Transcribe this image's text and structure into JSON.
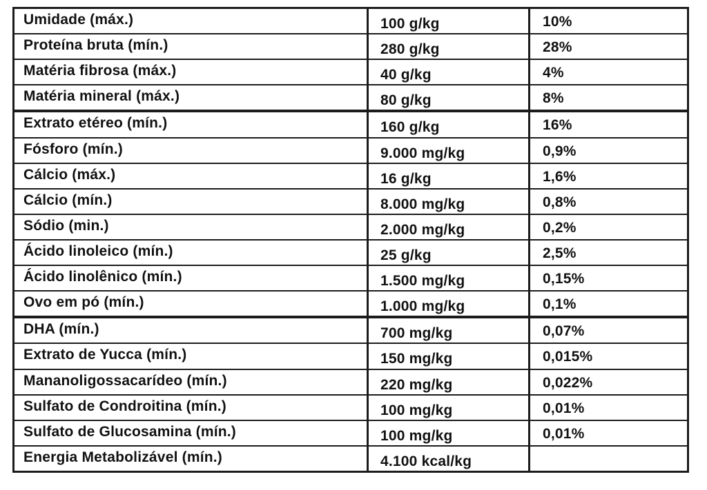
{
  "document": {
    "kind": "nutritional-guarantee-table",
    "language": "pt-BR"
  },
  "colors": {
    "background": "#ffffff",
    "border": "#1b1b1b",
    "text": "#111111"
  },
  "table": {
    "rows": [
      {
        "label": "Umidade (máx.)",
        "amount": "100 g/kg",
        "percent": "10%"
      },
      {
        "label": "Proteína bruta (mín.)",
        "amount": "280 g/kg",
        "percent": "28%"
      },
      {
        "label": "Matéria fibrosa (máx.)",
        "amount": "40 g/kg",
        "percent": "4%"
      },
      {
        "label": "Matéria mineral (máx.)",
        "amount": "80 g/kg",
        "percent": "8%"
      },
      {
        "label": "Extrato etéreo (mín.)",
        "amount": "160 g/kg",
        "percent": "16%"
      },
      {
        "label": "Fósforo (mín.)",
        "amount": "9.000 mg/kg",
        "percent": "0,9%"
      },
      {
        "label": "Cálcio (máx.)",
        "amount": "16 g/kg",
        "percent": "1,6%"
      },
      {
        "label": "Cálcio (mín.)",
        "amount": "8.000 mg/kg",
        "percent": "0,8%"
      },
      {
        "label": "Sódio (min.)",
        "amount": "2.000 mg/kg",
        "percent": "0,2%"
      },
      {
        "label": "Ácido linoleico (mín.)",
        "amount": "25 g/kg",
        "percent": "2,5%"
      },
      {
        "label": "Ácido linolênico (mín.)",
        "amount": "1.500 mg/kg",
        "percent": "0,15%"
      },
      {
        "label": "Ovo em pó (mín.)",
        "amount": "1.000 mg/kg",
        "percent": "0,1%"
      },
      {
        "label": "DHA (mín.)",
        "amount": "700 mg/kg",
        "percent": "0,07%"
      },
      {
        "label": "Extrato de Yucca (mín.)",
        "amount": "150 mg/kg",
        "percent": "0,015%"
      },
      {
        "label": "Mananoligossacarídeo (mín.)",
        "amount": "220 mg/kg",
        "percent": "0,022%"
      },
      {
        "label": "Sulfato de Condroitina (mín.)",
        "amount": "100 mg/kg",
        "percent": "0,01%"
      },
      {
        "label": "Sulfato de Glucosamina (mín.)",
        "amount": "100 mg/kg",
        "percent": "0,01%"
      },
      {
        "label": "Energia Metabolizável (mín.)",
        "amount": "4.100 kcal/kg",
        "percent": ""
      }
    ]
  }
}
